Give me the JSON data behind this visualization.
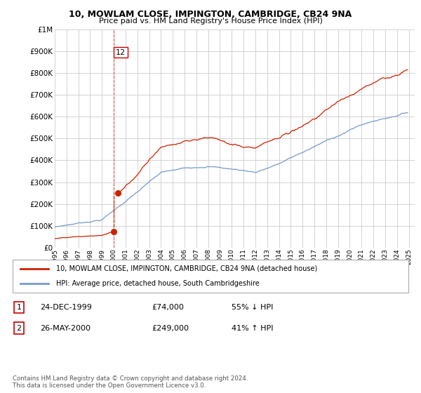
{
  "title": "10, MOWLAM CLOSE, IMPINGTON, CAMBRIDGE, CB24 9NA",
  "subtitle": "Price paid vs. HM Land Registry's House Price Index (HPI)",
  "legend_line1": "10, MOWLAM CLOSE, IMPINGTON, CAMBRIDGE, CB24 9NA (detached house)",
  "legend_line2": "HPI: Average price, detached house, South Cambridgeshire",
  "transactions": [
    {
      "num": 1,
      "date": "24-DEC-1999",
      "price": "£74,000",
      "hpi": "55% ↓ HPI"
    },
    {
      "num": 2,
      "date": "26-MAY-2000",
      "price": "£249,000",
      "hpi": "41% ↑ HPI"
    }
  ],
  "sale1_x": 1999.97,
  "sale1_y": 74000,
  "sale2_x": 2000.38,
  "sale2_y": 249000,
  "annotation_label": "12",
  "red_color": "#cc2200",
  "blue_color": "#7799cc",
  "background_color": "#ffffff",
  "grid_color": "#cccccc",
  "ylim": [
    0,
    1000000
  ],
  "xlim": [
    1995,
    2025.5
  ],
  "footnote": "Contains HM Land Registry data © Crown copyright and database right 2024.\nThis data is licensed under the Open Government Licence v3.0."
}
